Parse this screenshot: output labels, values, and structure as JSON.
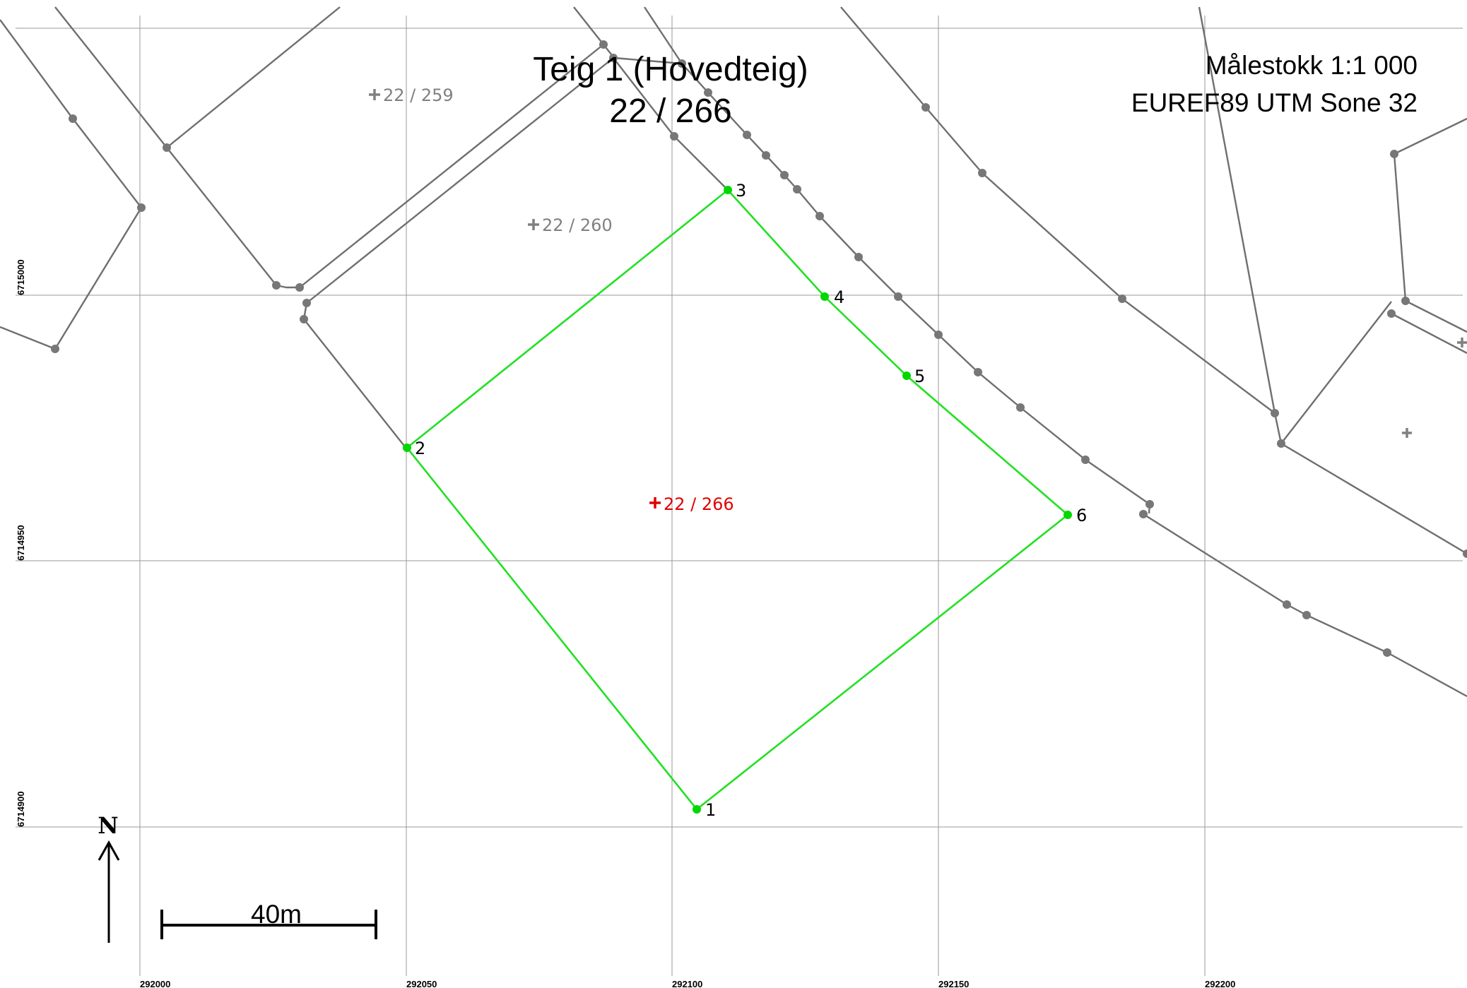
{
  "title": {
    "line1": "Teig 1 (Hovedteig)",
    "line2": "22 / 266"
  },
  "info": {
    "scale": "Målestokk 1:1 000",
    "crs": "EUREF89 UTM Sone 32"
  },
  "grid": {
    "eastings": [
      "292000",
      "292050",
      "292100",
      "292150",
      "292200"
    ],
    "northings": [
      "6715000",
      "6714950",
      "6714900"
    ]
  },
  "parcels": [
    {
      "label": "22 / 259",
      "highlight": false
    },
    {
      "label": "22 / 260",
      "highlight": false
    },
    {
      "label": "22 / 266",
      "highlight": true
    },
    {
      "label": "",
      "highlight": false
    },
    {
      "label": "",
      "highlight": false
    }
  ],
  "boundary_points": [
    {
      "id": "1",
      "label": "1"
    },
    {
      "id": "2",
      "label": "2"
    },
    {
      "id": "3",
      "label": "3"
    },
    {
      "id": "4",
      "label": "4"
    },
    {
      "id": "5",
      "label": "5"
    },
    {
      "id": "6",
      "label": "6"
    }
  ],
  "north_arrow": {
    "letter": "N"
  },
  "scale_bar": {
    "label": "40m"
  },
  "colors": {
    "teig": "#22e022",
    "main_parcel": "#e00000",
    "background_lines": "#6f6f6f",
    "grid": "#9a9a9a"
  },
  "icons": {
    "parcel_marker": "plus-icon",
    "north_arrow": "north-arrow-icon"
  }
}
